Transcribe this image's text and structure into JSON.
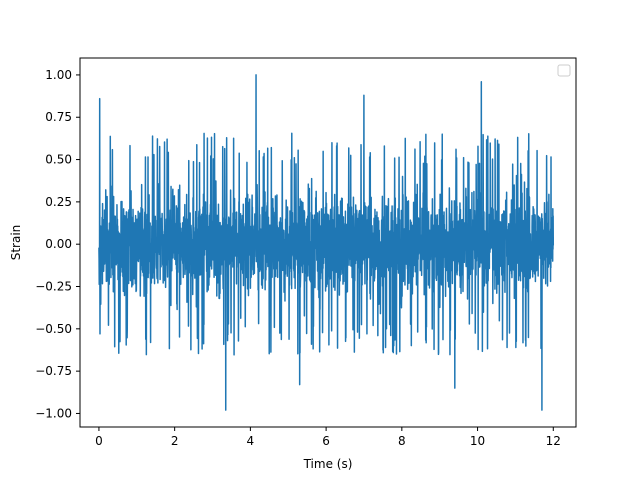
{
  "chart_data": {
    "type": "line",
    "title": "",
    "xlabel": "Time (s)",
    "ylabel": "Strain",
    "xlim": [
      -0.5,
      12.6
    ],
    "ylim": [
      -1.08,
      1.1
    ],
    "xticks": [
      0,
      2,
      4,
      6,
      8,
      10,
      12
    ],
    "xtick_labels": [
      "0",
      "2",
      "4",
      "6",
      "8",
      "10",
      "12"
    ],
    "yticks": [
      -1.0,
      -0.75,
      -0.5,
      -0.25,
      0.0,
      0.25,
      0.5,
      0.75,
      1.0
    ],
    "ytick_labels": [
      "−1.00",
      "−0.75",
      "−0.50",
      "−0.25",
      "0.00",
      "0.25",
      "0.50",
      "0.75",
      "1.00"
    ],
    "grid": false,
    "legend": {
      "placement": "top-right",
      "entries": []
    },
    "series": [
      {
        "color": "#1f77b4",
        "x_start": 0.0,
        "x_end": 12.0,
        "typical_range": [
          -0.42,
          0.4
        ],
        "burst_band": [
          -0.55,
          0.55
        ],
        "peaks": [
          {
            "x": 0.02,
            "y": 0.86
          },
          {
            "x": 4.15,
            "y": 1.0
          },
          {
            "x": 7.0,
            "y": 0.88
          },
          {
            "x": 10.1,
            "y": 0.96
          },
          {
            "x": 0.03,
            "y": -0.53
          },
          {
            "x": 3.35,
            "y": -0.98
          },
          {
            "x": 11.7,
            "y": -0.98
          },
          {
            "x": 9.4,
            "y": -0.85
          },
          {
            "x": 5.3,
            "y": -0.83
          }
        ]
      }
    ]
  }
}
